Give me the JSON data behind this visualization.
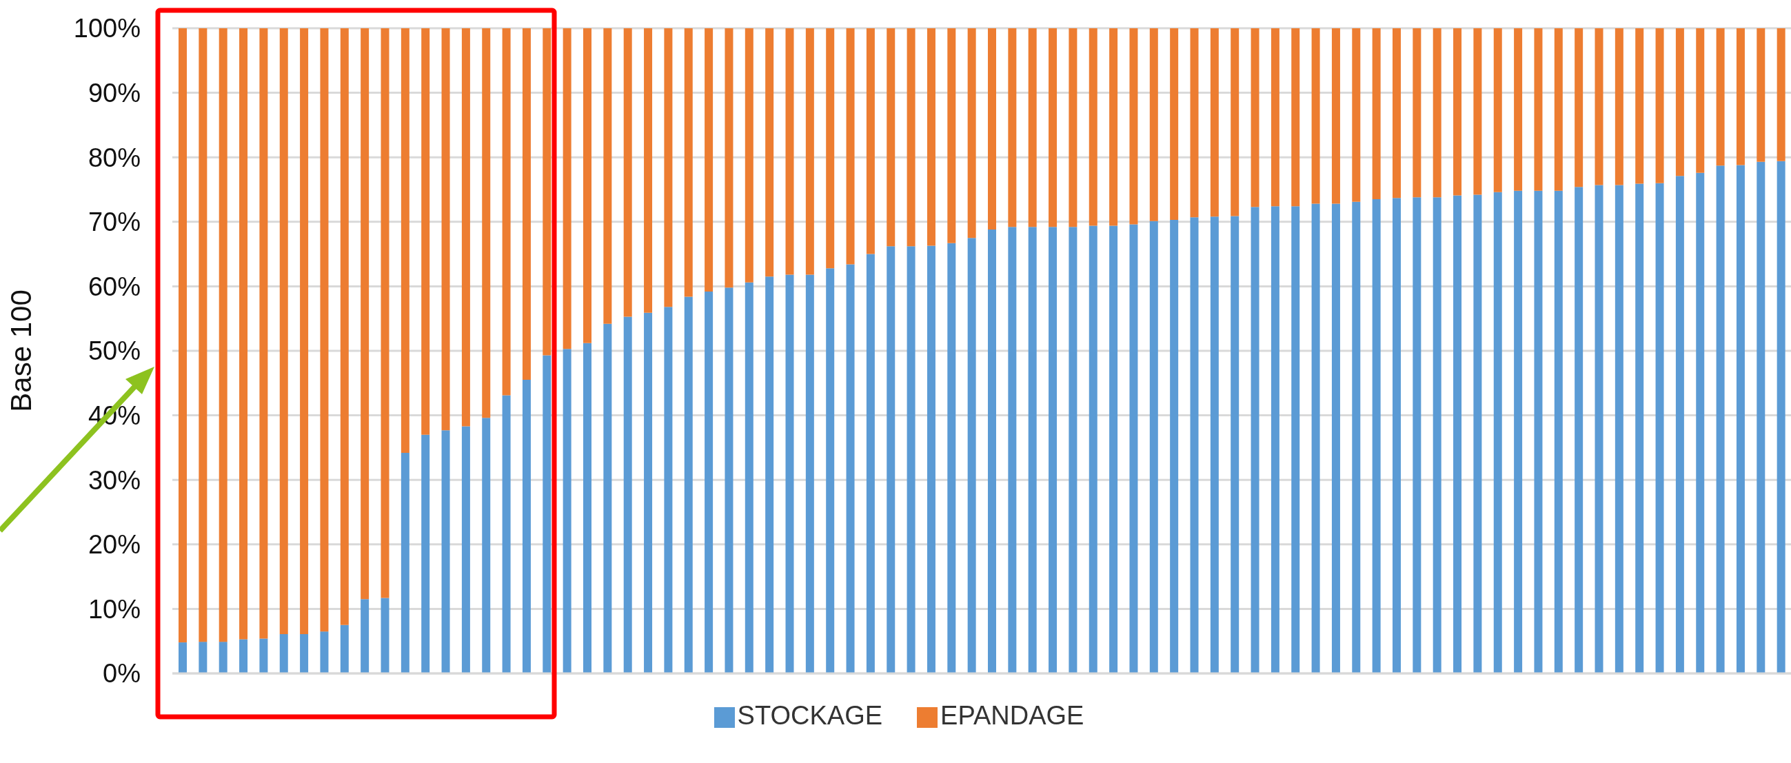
{
  "chart_data": {
    "type": "bar",
    "stacked": true,
    "ylabel": "Base 100",
    "categories": [
      null,
      null,
      null,
      null,
      null,
      null,
      null,
      null,
      null,
      null,
      null,
      null,
      null,
      null,
      null,
      null,
      null,
      null,
      null,
      null,
      null,
      null,
      null,
      null,
      null,
      null,
      null,
      null,
      null,
      null,
      null,
      null,
      null,
      null,
      null,
      null,
      null,
      null,
      null,
      null,
      null,
      null,
      null,
      null,
      null,
      null,
      null,
      null,
      null,
      null,
      null,
      null,
      null,
      null,
      null,
      null,
      null,
      null,
      null,
      null,
      null,
      null,
      null,
      null,
      null,
      null,
      null,
      null,
      null,
      null,
      null,
      null,
      null,
      null,
      null,
      null,
      null,
      null,
      null,
      null
    ],
    "series": [
      {
        "name": "STOCKAGE",
        "color": "#5b9bd5",
        "values": [
          4.8,
          4.9,
          4.9,
          5.3,
          5.4,
          6.1,
          6.1,
          6.5,
          7.5,
          11.5,
          11.7,
          34.2,
          37.0,
          37.7,
          38.3,
          39.6,
          43.1,
          45.5,
          49.3,
          50.3,
          51.2,
          54.2,
          55.3,
          55.9,
          56.8,
          58.4,
          59.2,
          59.8,
          60.6,
          61.5,
          61.8,
          61.8,
          62.8,
          63.4,
          65.0,
          66.2,
          66.2,
          66.3,
          66.7,
          67.5,
          68.8,
          69.2,
          69.2,
          69.2,
          69.2,
          69.4,
          69.4,
          69.6,
          70.1,
          70.3,
          70.7,
          70.8,
          70.9,
          72.3,
          72.4,
          72.4,
          72.8,
          72.8,
          73.1,
          73.5,
          73.7,
          73.8,
          73.8,
          74.1,
          74.2,
          74.6,
          74.8,
          74.8,
          74.8,
          75.4,
          75.7,
          75.7,
          75.9,
          76.0,
          77.1,
          77.6,
          78.7,
          78.8,
          79.3,
          79.4
        ]
      },
      {
        "name": "EPANDAGE",
        "color": "#ed7d31",
        "values": [
          95.2,
          95.1,
          95.1,
          94.7,
          94.6,
          93.9,
          93.9,
          93.5,
          92.5,
          88.5,
          88.3,
          65.8,
          63.0,
          62.3,
          61.7,
          60.4,
          56.9,
          54.5,
          50.7,
          49.7,
          48.8,
          45.8,
          44.7,
          44.1,
          43.2,
          41.6,
          40.8,
          40.2,
          39.4,
          38.5,
          38.2,
          38.2,
          37.2,
          36.6,
          35.0,
          33.8,
          33.8,
          33.7,
          33.3,
          32.5,
          31.2,
          30.8,
          30.8,
          30.8,
          30.8,
          30.6,
          30.6,
          30.4,
          29.9,
          29.7,
          29.3,
          29.2,
          29.1,
          27.7,
          27.6,
          27.6,
          27.2,
          27.2,
          26.9,
          26.5,
          26.3,
          26.2,
          26.2,
          25.9,
          25.8,
          25.4,
          25.2,
          25.2,
          25.2,
          24.6,
          24.3,
          24.3,
          24.1,
          24.0,
          22.9,
          22.4,
          21.3,
          21.2,
          20.7,
          20.6
        ]
      }
    ],
    "ylim": [
      0,
      100
    ],
    "yticks": [
      {
        "value": 0,
        "label": "0%"
      },
      {
        "value": 10,
        "label": "10%"
      },
      {
        "value": 20,
        "label": "20%"
      },
      {
        "value": 30,
        "label": "30%"
      },
      {
        "value": 40,
        "label": "40%"
      },
      {
        "value": 50,
        "label": "50%"
      },
      {
        "value": 60,
        "label": "60%"
      },
      {
        "value": 70,
        "label": "70%"
      },
      {
        "value": 80,
        "label": "80%"
      },
      {
        "value": 90,
        "label": "90%"
      },
      {
        "value": 100,
        "label": "100%"
      }
    ],
    "grid": "y",
    "legend": "bottom"
  }
}
